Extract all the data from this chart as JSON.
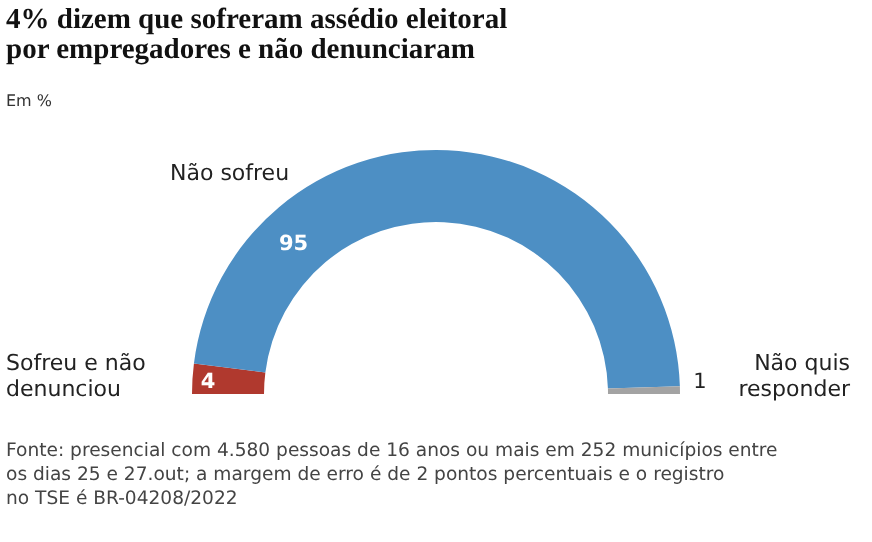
{
  "chart_data": {
    "type": "donut",
    "title": "4% dizem que sofreram assédio eleitoral por empregadores e não denunciaram",
    "subtitle": "Em %",
    "categories": [
      "Sofreu e não denunciou",
      "Não sofreu",
      "Não quis responder"
    ],
    "values": [
      4,
      95,
      1
    ],
    "colors": [
      "#b0392e",
      "#4d8fc4",
      "#a3a3a3"
    ],
    "data_labels": true,
    "annotations": [
      "Fonte: presencial com 4.580 pessoas de 16 anos ou mais em 252 municípios entre os dias 25 e 27.out; a margem de erro é de 2 pontos percentuais e o registro no TSE é BR-04208/2022"
    ]
  }
}
